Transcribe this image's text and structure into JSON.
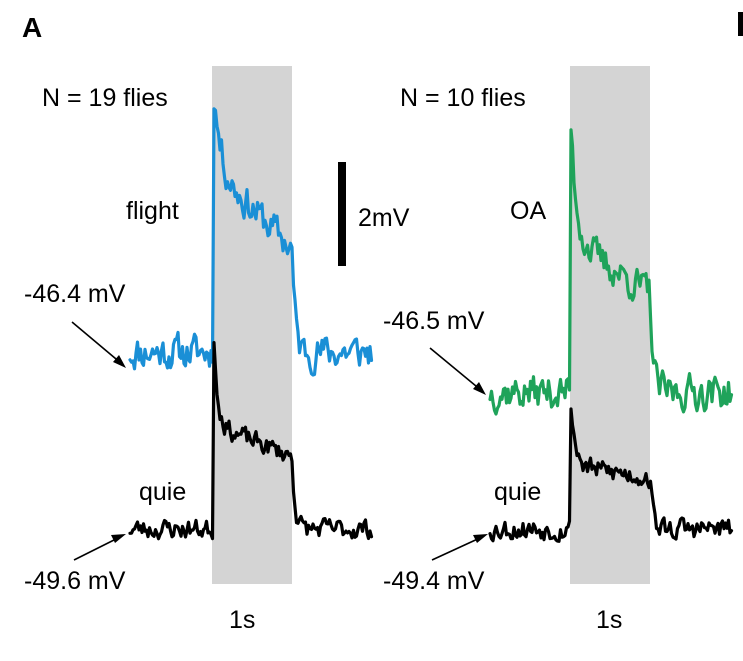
{
  "panel_label": "A",
  "colors": {
    "flight": "#1a8fd6",
    "oa": "#1fa35a",
    "quie": "#000000",
    "stimulus_bar": "#d4d4d4"
  },
  "chart_data": [
    {
      "type": "line",
      "annotation": "N = 19 flies",
      "stimulus_label": "1s",
      "scale_bar_label": "2mV",
      "series": [
        {
          "name": "flight",
          "baseline_label": "-46.4 mV",
          "color_key": "flight",
          "shape": {
            "baseline": 0,
            "peak": 5.3,
            "plateau_start": 3.5,
            "plateau_end": 2.0,
            "fast_decay": 0.08,
            "noise": 0.32
          }
        },
        {
          "name": "quie",
          "baseline_label": "-49.6 mV",
          "color_key": "quie",
          "shape": {
            "baseline": 0,
            "peak": 4.1,
            "plateau_start": 2.0,
            "plateau_end": 1.4,
            "fast_decay": 0.05,
            "noise": 0.18
          }
        }
      ]
    },
    {
      "type": "line",
      "annotation": "N = 10 flies",
      "stimulus_label": "1s",
      "series": [
        {
          "name": "OA",
          "baseline_label": "-46.5 mV",
          "color_key": "oa",
          "shape": {
            "baseline": 0,
            "peak": 5.1,
            "plateau_start": 2.9,
            "plateau_end": 1.9,
            "fast_decay": 0.07,
            "noise": 0.32
          }
        },
        {
          "name": "quie",
          "baseline_label": "-49.4 mV",
          "color_key": "quie",
          "shape": {
            "baseline": 0,
            "peak": 2.4,
            "plateau_start": 1.2,
            "plateau_end": 1.0,
            "fast_decay": 0.06,
            "noise": 0.2
          }
        }
      ]
    }
  ]
}
